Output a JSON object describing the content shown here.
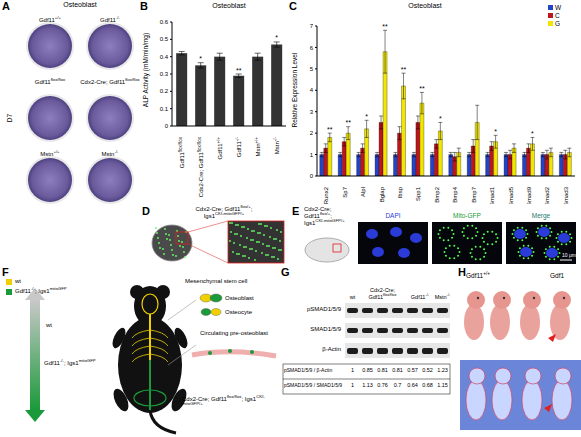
{
  "panel_letters": [
    "A",
    "B",
    "C",
    "D",
    "E",
    "F",
    "G",
    "H"
  ],
  "panel_A": {
    "title": "Osteoblast",
    "day": "D7",
    "rows": [
      [
        "Gdf11+/+",
        "Gdf11-/-"
      ],
      [
        "Gdf11flox/flox",
        "Cdx2-Cre; Gdf11flox/flox"
      ],
      [
        "Mstn+/+",
        "Mstn-/-"
      ]
    ]
  },
  "chart_data": [
    {
      "type": "bar",
      "title": "Osteoblast",
      "ylabel": "ALP Activity (mM/min/mg)",
      "categories": [
        "Gdf11flox/flox",
        "Cdx2-Cre; Gdf11flox/flox",
        "Gdf11+/+",
        "Gdf11-/-",
        "Mstn+/+",
        "Mstn-/-"
      ],
      "values": [
        0.42,
        0.35,
        0.4,
        0.29,
        0.4,
        0.47
      ],
      "errors": [
        0.01,
        0.015,
        0.02,
        0.01,
        0.02,
        0.015
      ],
      "significance": [
        null,
        "*",
        null,
        "**",
        null,
        "*"
      ],
      "color": "#333333",
      "ylim": [
        0,
        0.6
      ],
      "yticks": [
        0,
        0.1,
        0.2,
        0.3,
        0.4,
        0.5,
        0.6
      ]
    },
    {
      "type": "bar",
      "title": "Osteoblast",
      "ylabel": "Relative Expression Level",
      "categories": [
        "Runx2",
        "Sp7",
        "Alpl",
        "Bglap",
        "Ibsp",
        "Spp1",
        "Bmp2",
        "Bmp4",
        "Bmp7",
        "Smad1",
        "Smad5",
        "Smad9",
        "Smad2",
        "Smad3"
      ],
      "series": [
        {
          "name": "W",
          "color": "#2343c8",
          "values": [
            1,
            1,
            1,
            1,
            1,
            1,
            1,
            1,
            1,
            1,
            1,
            1,
            1,
            1
          ],
          "errors": [
            0.1,
            0.1,
            0.1,
            0.1,
            0.1,
            0.1,
            0.1,
            0.1,
            0.1,
            0.1,
            0.1,
            0.1,
            0.1,
            0.1
          ]
        },
        {
          "name": "C",
          "color": "#c0141c",
          "values": [
            1.3,
            1.6,
            1.3,
            2.5,
            2.0,
            2.5,
            1.5,
            0.9,
            1.4,
            1.4,
            1.0,
            1.3,
            1.0,
            1.0
          ],
          "errors": [
            0.2,
            0.2,
            0.2,
            0.3,
            0.3,
            0.3,
            0.2,
            0.2,
            0.3,
            0.2,
            0.2,
            0.2,
            0.2,
            0.2
          ]
        },
        {
          "name": "G",
          "color": "#f2e600",
          "values": [
            1.8,
            2.0,
            2.2,
            5.8,
            4.2,
            3.4,
            2.1,
            1.1,
            2.5,
            1.6,
            1.3,
            1.5,
            1.1,
            1.1
          ],
          "errors": [
            0.2,
            0.3,
            0.4,
            1.0,
            0.6,
            0.5,
            0.4,
            0.2,
            0.8,
            0.3,
            0.2,
            0.3,
            0.2,
            0.2
          ]
        }
      ],
      "significance": [
        "**",
        "**",
        "*",
        "**",
        "**",
        "**",
        "*",
        null,
        null,
        "*",
        null,
        "*",
        null,
        null
      ],
      "ylim": [
        0,
        7
      ],
      "yticks": [
        0,
        1,
        2,
        3,
        4,
        5,
        6,
        7
      ],
      "legend": "top right"
    }
  ],
  "panel_D": {
    "label": [
      "Cdx2-Cre; Gdf11flox/+;",
      "Igs1CKI-mitoGFP/+"
    ]
  },
  "panel_E": {
    "label": [
      "Cdx2-Cre;",
      "Gdf11flox/+;",
      "Igs1CKI-mitoGFP/+"
    ],
    "channels": [
      "DAPI",
      "Mito-GFP",
      "Merge"
    ],
    "scale_bar": "10 μm"
  },
  "panel_F": {
    "legend": [
      "wt",
      "Gdf11-/-; Igs1mitoGFP"
    ],
    "cells": [
      "Mesenchymal stem cell",
      "Osteoblast",
      "Osteocyte",
      "Circulating pre-osteoblast"
    ],
    "gradient": [
      "wt",
      "Gdf11-/-; Igs1mitoGFP"
    ],
    "mouse": "Cdx2-Cre; Gdf11flox/flox; Igs1CKI-mitoGFP/+"
  },
  "panel_G": {
    "groups": [
      {
        "label": "wt",
        "lanes": 1
      },
      {
        "label": "Cdx2-Cre; Gdf11flox/flox",
        "lanes": 3
      },
      {
        "label": "Gdf11-/-",
        "lanes": 2
      },
      {
        "label": "Mstn-/-",
        "lanes": 1
      }
    ],
    "bands": [
      "pSMAD1/5/9",
      "SMAD1/5/9",
      "β-Actin"
    ],
    "quantification": [
      {
        "label": "pSMAD1/5/9 / β-Actin",
        "values": [
          1,
          0.85,
          0.81,
          0.81,
          0.57,
          0.52,
          1.23
        ]
      },
      {
        "label": "pSMAD1/5/9 / SMAD1/5/9",
        "values": [
          1,
          1.13,
          0.76,
          0.7,
          0.64,
          0.68,
          1.15
        ]
      }
    ]
  },
  "panel_H": {
    "labels": [
      "Gdf11+/+",
      "Gdf1"
    ]
  }
}
